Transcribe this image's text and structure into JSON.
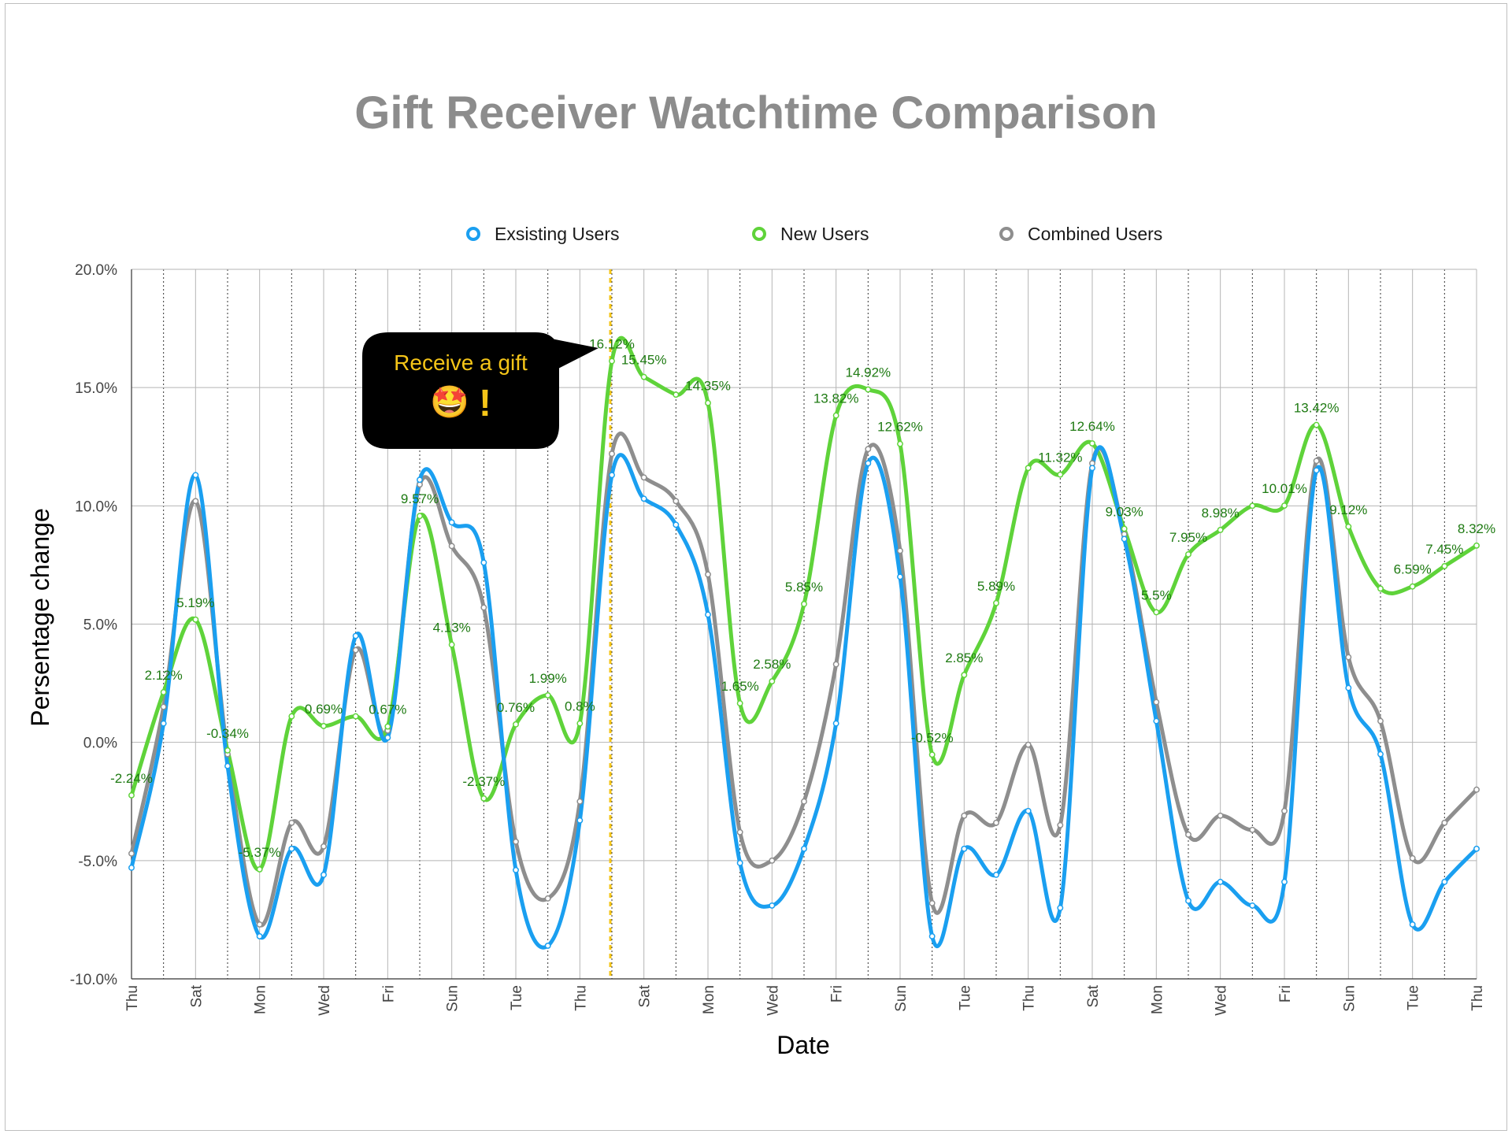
{
  "chart_data": {
    "type": "line",
    "title": "Gift Receiver Watchtime Comparison",
    "xlabel": "Date",
    "ylabel": "Persentage change",
    "ylim": [
      -10,
      20
    ],
    "yticks": [
      "-10.0%",
      "-5.0%",
      "0.0%",
      "5.0%",
      "10.0%",
      "15.0%",
      "20.0%"
    ],
    "x_tick_labels": [
      "Thu",
      "Sat",
      "Mon",
      "Wed",
      "Fri",
      "Sun",
      "Tue",
      "Thu",
      "Sat",
      "Mon",
      "Wed",
      "Fri",
      "Sun",
      "Tue",
      "Thu",
      "Sat",
      "Mon",
      "Wed",
      "Fri",
      "Sun",
      "Tue",
      "Thu"
    ],
    "grid": true,
    "legend_position": "top",
    "series": [
      {
        "name": "Exsisting Users",
        "color": "#1a9ff0",
        "values": [
          -5.3,
          0.8,
          11.3,
          -1.0,
          -8.2,
          -4.5,
          -5.6,
          4.5,
          0.2,
          11.1,
          9.3,
          7.6,
          -5.4,
          -8.6,
          -3.3,
          11.3,
          10.3,
          9.2,
          5.4,
          -5.1,
          -6.9,
          -4.5,
          0.8,
          11.8,
          7.0,
          -8.2,
          -4.5,
          -5.6,
          -2.9,
          -7.0,
          11.6,
          8.6,
          0.9,
          -6.7,
          -5.9,
          -6.9,
          -5.9,
          11.5,
          2.3,
          -0.5,
          -7.7,
          -5.9,
          -4.5
        ]
      },
      {
        "name": "New Users",
        "color": "#5fd33a",
        "values": [
          -2.24,
          2.12,
          5.19,
          -0.34,
          -5.37,
          1.1,
          0.69,
          1.1,
          0.67,
          9.57,
          4.13,
          -2.37,
          0.76,
          1.99,
          0.8,
          16.12,
          15.45,
          14.7,
          14.35,
          1.65,
          2.58,
          5.85,
          13.82,
          14.92,
          12.62,
          -0.52,
          2.85,
          5.89,
          11.6,
          11.32,
          12.64,
          9.03,
          5.5,
          7.95,
          8.98,
          10.0,
          10.01,
          13.42,
          9.12,
          6.5,
          6.59,
          7.45,
          8.32
        ]
      },
      {
        "name": "Combined Users",
        "color": "#8e8e8e",
        "values": [
          -4.7,
          1.5,
          10.2,
          -0.5,
          -7.7,
          -3.4,
          -4.4,
          3.9,
          0.5,
          10.9,
          8.3,
          5.7,
          -4.2,
          -6.6,
          -2.5,
          12.2,
          11.2,
          10.2,
          7.1,
          -3.8,
          -5.0,
          -2.5,
          3.3,
          12.4,
          8.1,
          -6.8,
          -3.1,
          -3.4,
          -0.1,
          -3.5,
          11.8,
          8.8,
          1.7,
          -3.9,
          -3.1,
          -3.7,
          -2.9,
          11.9,
          3.6,
          0.9,
          -4.9,
          -3.4,
          -2.0
        ]
      }
    ],
    "data_labels": [
      {
        "index": 0,
        "text": "-2.24%"
      },
      {
        "index": 1,
        "text": "2.12%"
      },
      {
        "index": 2,
        "text": "5.19%"
      },
      {
        "index": 3,
        "text": "-0.34%"
      },
      {
        "index": 4,
        "text": "-5.37%"
      },
      {
        "index": 6,
        "text": "0.69%"
      },
      {
        "index": 8,
        "text": "0.67%"
      },
      {
        "index": 9,
        "text": "9.57%"
      },
      {
        "index": 10,
        "text": "4.13%"
      },
      {
        "index": 11,
        "text": "-2.37%"
      },
      {
        "index": 12,
        "text": "0.76%"
      },
      {
        "index": 13,
        "text": "1.99%"
      },
      {
        "index": 14,
        "text": "0.8%"
      },
      {
        "index": 15,
        "text": "16.12%"
      },
      {
        "index": 16,
        "text": "15.45%"
      },
      {
        "index": 18,
        "text": "14.35%"
      },
      {
        "index": 19,
        "text": "1.65%"
      },
      {
        "index": 20,
        "text": "2.58%"
      },
      {
        "index": 21,
        "text": "5.85%"
      },
      {
        "index": 22,
        "text": "13.82%"
      },
      {
        "index": 23,
        "text": "14.92%"
      },
      {
        "index": 24,
        "text": "12.62%"
      },
      {
        "index": 25,
        "text": "-0.52%"
      },
      {
        "index": 26,
        "text": "2.85%"
      },
      {
        "index": 27,
        "text": "5.89%"
      },
      {
        "index": 29,
        "text": "11.32%"
      },
      {
        "index": 30,
        "text": "12.64%"
      },
      {
        "index": 31,
        "text": "9.03%"
      },
      {
        "index": 32,
        "text": "5.5%"
      },
      {
        "index": 33,
        "text": "7.95%"
      },
      {
        "index": 34,
        "text": "8.98%"
      },
      {
        "index": 36,
        "text": "10.01%"
      },
      {
        "index": 37,
        "text": "13.42%"
      },
      {
        "index": 38,
        "text": "9.12%"
      },
      {
        "index": 40,
        "text": "6.59%"
      },
      {
        "index": 41,
        "text": "7.45%"
      },
      {
        "index": 42,
        "text": "8.32%"
      }
    ],
    "annotation": {
      "text": "Receive a gift",
      "emoji": "🤩",
      "mark": "!",
      "at_index": 15
    },
    "marker_line_color": "#f5c518"
  }
}
